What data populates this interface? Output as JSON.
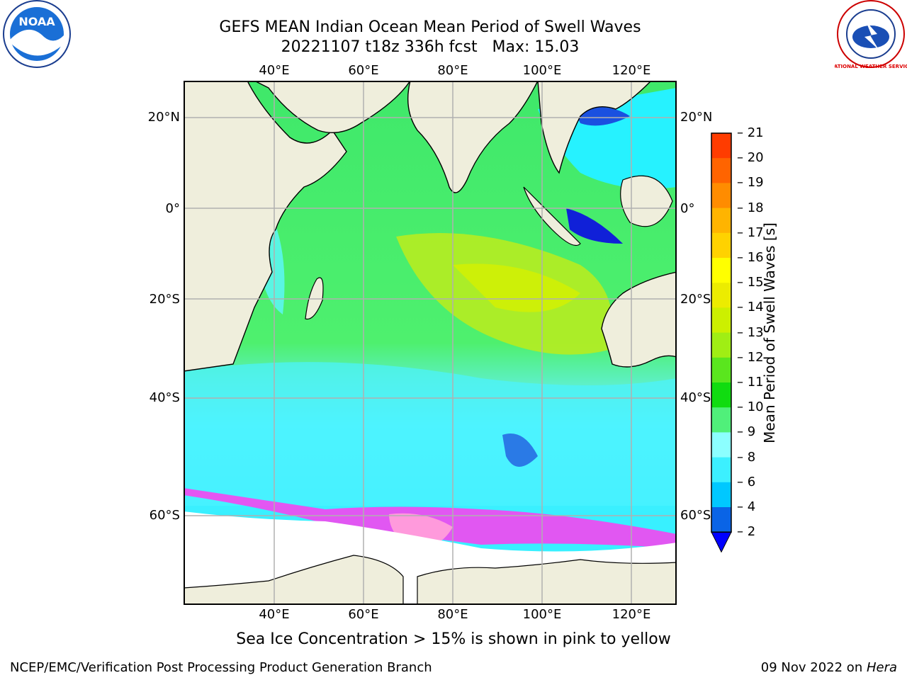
{
  "title": "GEFS MEAN Indian Ocean Mean Period of Swell Waves",
  "subtitle": "20221107 t18z 336h fcst   Max: 15.03",
  "note": "Sea Ice Concentration > 15% is shown in pink to yellow",
  "footer": {
    "left": "NCEP/EMC/Verification Post Processing Product Generation Branch",
    "right_date": "09 Nov 2022 on ",
    "right_host": "Hera"
  },
  "colorbar": {
    "label": "Mean Period of Swell Waves [s]",
    "ticks": [
      "2",
      "4",
      "6",
      "8",
      "9",
      "10",
      "11",
      "12",
      "13",
      "14",
      "15",
      "16",
      "17",
      "18",
      "19",
      "20",
      "21"
    ],
    "colors": [
      "#0a64e6",
      "#00c8ff",
      "#3cf0ff",
      "#8cffff",
      "#50f07a",
      "#10dc10",
      "#5ae61e",
      "#a0ee14",
      "#ccf000",
      "#ecec00",
      "#ffff00",
      "#ffd200",
      "#ffb400",
      "#ff8c00",
      "#ff6400",
      "#ff3c00",
      "#ff0000"
    ],
    "extend_color": "#0000ff"
  },
  "axes": {
    "lon_labels": [
      "40°E",
      "60°E",
      "80°E",
      "100°E",
      "120°E"
    ],
    "lat_labels_left": [
      "20°N",
      "0°",
      "20°S",
      "40°S",
      "60°S"
    ],
    "lat_labels_right": [
      "20°N",
      "0°",
      "20°S",
      "40°S",
      "60°S"
    ]
  },
  "logos": {
    "left": "NOAA",
    "right": "NATIONAL WEATHER SERVICE"
  },
  "colors": {
    "land": "#efeedc",
    "ice": "#ffffff",
    "grid": "#b0b0b0"
  }
}
